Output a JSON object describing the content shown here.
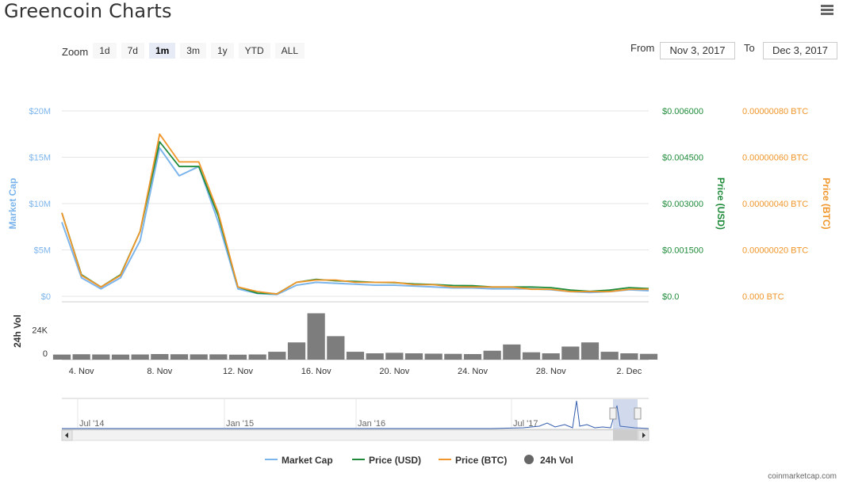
{
  "header": {
    "title": "Greencoin Charts",
    "menu_icon": "hamburger-menu-icon"
  },
  "zoom": {
    "label": "Zoom",
    "buttons": [
      "1d",
      "7d",
      "1m",
      "3m",
      "1y",
      "YTD",
      "ALL"
    ],
    "active": "1m"
  },
  "range": {
    "from_label": "From",
    "from_value": "Nov 3, 2017",
    "to_label": "To",
    "to_value": "Dec 3, 2017"
  },
  "colors": {
    "market_cap": "#7cb5ec",
    "price_usd": "#1f8b3a",
    "price_btc": "#f0962a",
    "volume": "#666666"
  },
  "chart_data": {
    "type": "line",
    "x": [
      "Nov 3",
      "Nov 4",
      "Nov 5",
      "Nov 6",
      "Nov 7",
      "Nov 8",
      "Nov 9",
      "Nov 10",
      "Nov 11",
      "Nov 12",
      "Nov 13",
      "Nov 14",
      "Nov 15",
      "Nov 16",
      "Nov 17",
      "Nov 18",
      "Nov 19",
      "Nov 20",
      "Nov 21",
      "Nov 22",
      "Nov 23",
      "Nov 24",
      "Nov 25",
      "Nov 26",
      "Nov 27",
      "Nov 28",
      "Nov 29",
      "Nov 30",
      "Dec 1",
      "Dec 2",
      "Dec 3"
    ],
    "series": [
      {
        "name": "Market Cap",
        "axis": "Market Cap",
        "values": [
          8000000,
          2000000,
          800000,
          2000000,
          6000000,
          16000000,
          13000000,
          14000000,
          8000000,
          800000,
          300000,
          200000,
          1200000,
          1500000,
          1400000,
          1300000,
          1200000,
          1200000,
          1100000,
          1000000,
          900000,
          900000,
          800000,
          800000,
          800000,
          700000,
          500000,
          400000,
          500000,
          700000,
          600000
        ]
      },
      {
        "name": "Price (USD)",
        "axis": "Price (USD)",
        "values": [
          0.0027,
          0.0007,
          0.0003,
          0.0007,
          0.0021,
          0.005,
          0.0042,
          0.0042,
          0.0026,
          0.0003,
          0.0001,
          8e-05,
          0.00045,
          0.00055,
          0.0005,
          0.00048,
          0.00045,
          0.00044,
          0.0004,
          0.00038,
          0.00035,
          0.00034,
          0.0003,
          0.0003,
          0.0003,
          0.00028,
          0.0002,
          0.00016,
          0.0002,
          0.00028,
          0.00025
        ]
      },
      {
        "name": "Price (BTC)",
        "axis": "Price (BTC)",
        "values": [
          3.6e-07,
          9e-08,
          4e-08,
          9e-08,
          2.8e-07,
          7e-07,
          5.8e-07,
          5.8e-07,
          3.6e-07,
          4e-08,
          2e-08,
          1e-08,
          6e-08,
          7e-08,
          7e-08,
          6e-08,
          6e-08,
          6e-08,
          5e-08,
          5e-08,
          4e-08,
          4e-08,
          4e-08,
          4e-08,
          3e-08,
          3e-08,
          2e-08,
          2e-08,
          2e-08,
          3e-08,
          3e-08
        ]
      },
      {
        "name": "24h Vol",
        "axis": "24h Vol",
        "type": "column",
        "values": [
          300,
          600,
          400,
          300,
          400,
          800,
          600,
          500,
          500,
          200,
          400,
          3000,
          12000,
          40000,
          18000,
          3000,
          1500,
          2000,
          1500,
          1200,
          1000,
          800,
          4000,
          10000,
          2500,
          1500,
          8000,
          12000,
          3000,
          1500,
          1000
        ]
      }
    ],
    "x_ticks": [
      "4. Nov",
      "8. Nov",
      "12. Nov",
      "16. Nov",
      "20. Nov",
      "24. Nov",
      "28. Nov",
      "2. Dec"
    ],
    "y_axes": {
      "market_cap": {
        "label": "Market Cap",
        "ticks": [
          "$0",
          "$5M",
          "$10M",
          "$15M",
          "$20M"
        ],
        "range": [
          0,
          20000000
        ]
      },
      "price_usd": {
        "label": "Price (USD)",
        "ticks": [
          "$0.0",
          "$0.001500",
          "$0.003000",
          "$0.004500",
          "$0.006000"
        ],
        "range": [
          0,
          0.006
        ]
      },
      "price_btc": {
        "label": "Price (BTC)",
        "ticks": [
          "0.000 BTC",
          "0.00000020 BTC",
          "0.00000040 BTC",
          "0.00000060 BTC",
          "0.00000080 BTC"
        ],
        "range": [
          0,
          8e-07
        ]
      },
      "volume": {
        "label": "24h Vol",
        "ticks": [
          "0",
          "24K"
        ],
        "range": [
          0,
          48000
        ]
      }
    },
    "navigator": {
      "ticks": [
        "Jul '14",
        "Jan '15",
        "Jan '16",
        "Jul '17"
      ]
    },
    "legend": {
      "placement": "bottom",
      "items": [
        "Market Cap",
        "Price (USD)",
        "Price (BTC)",
        "24h Vol"
      ]
    }
  },
  "credit": "coinmarketcap.com"
}
